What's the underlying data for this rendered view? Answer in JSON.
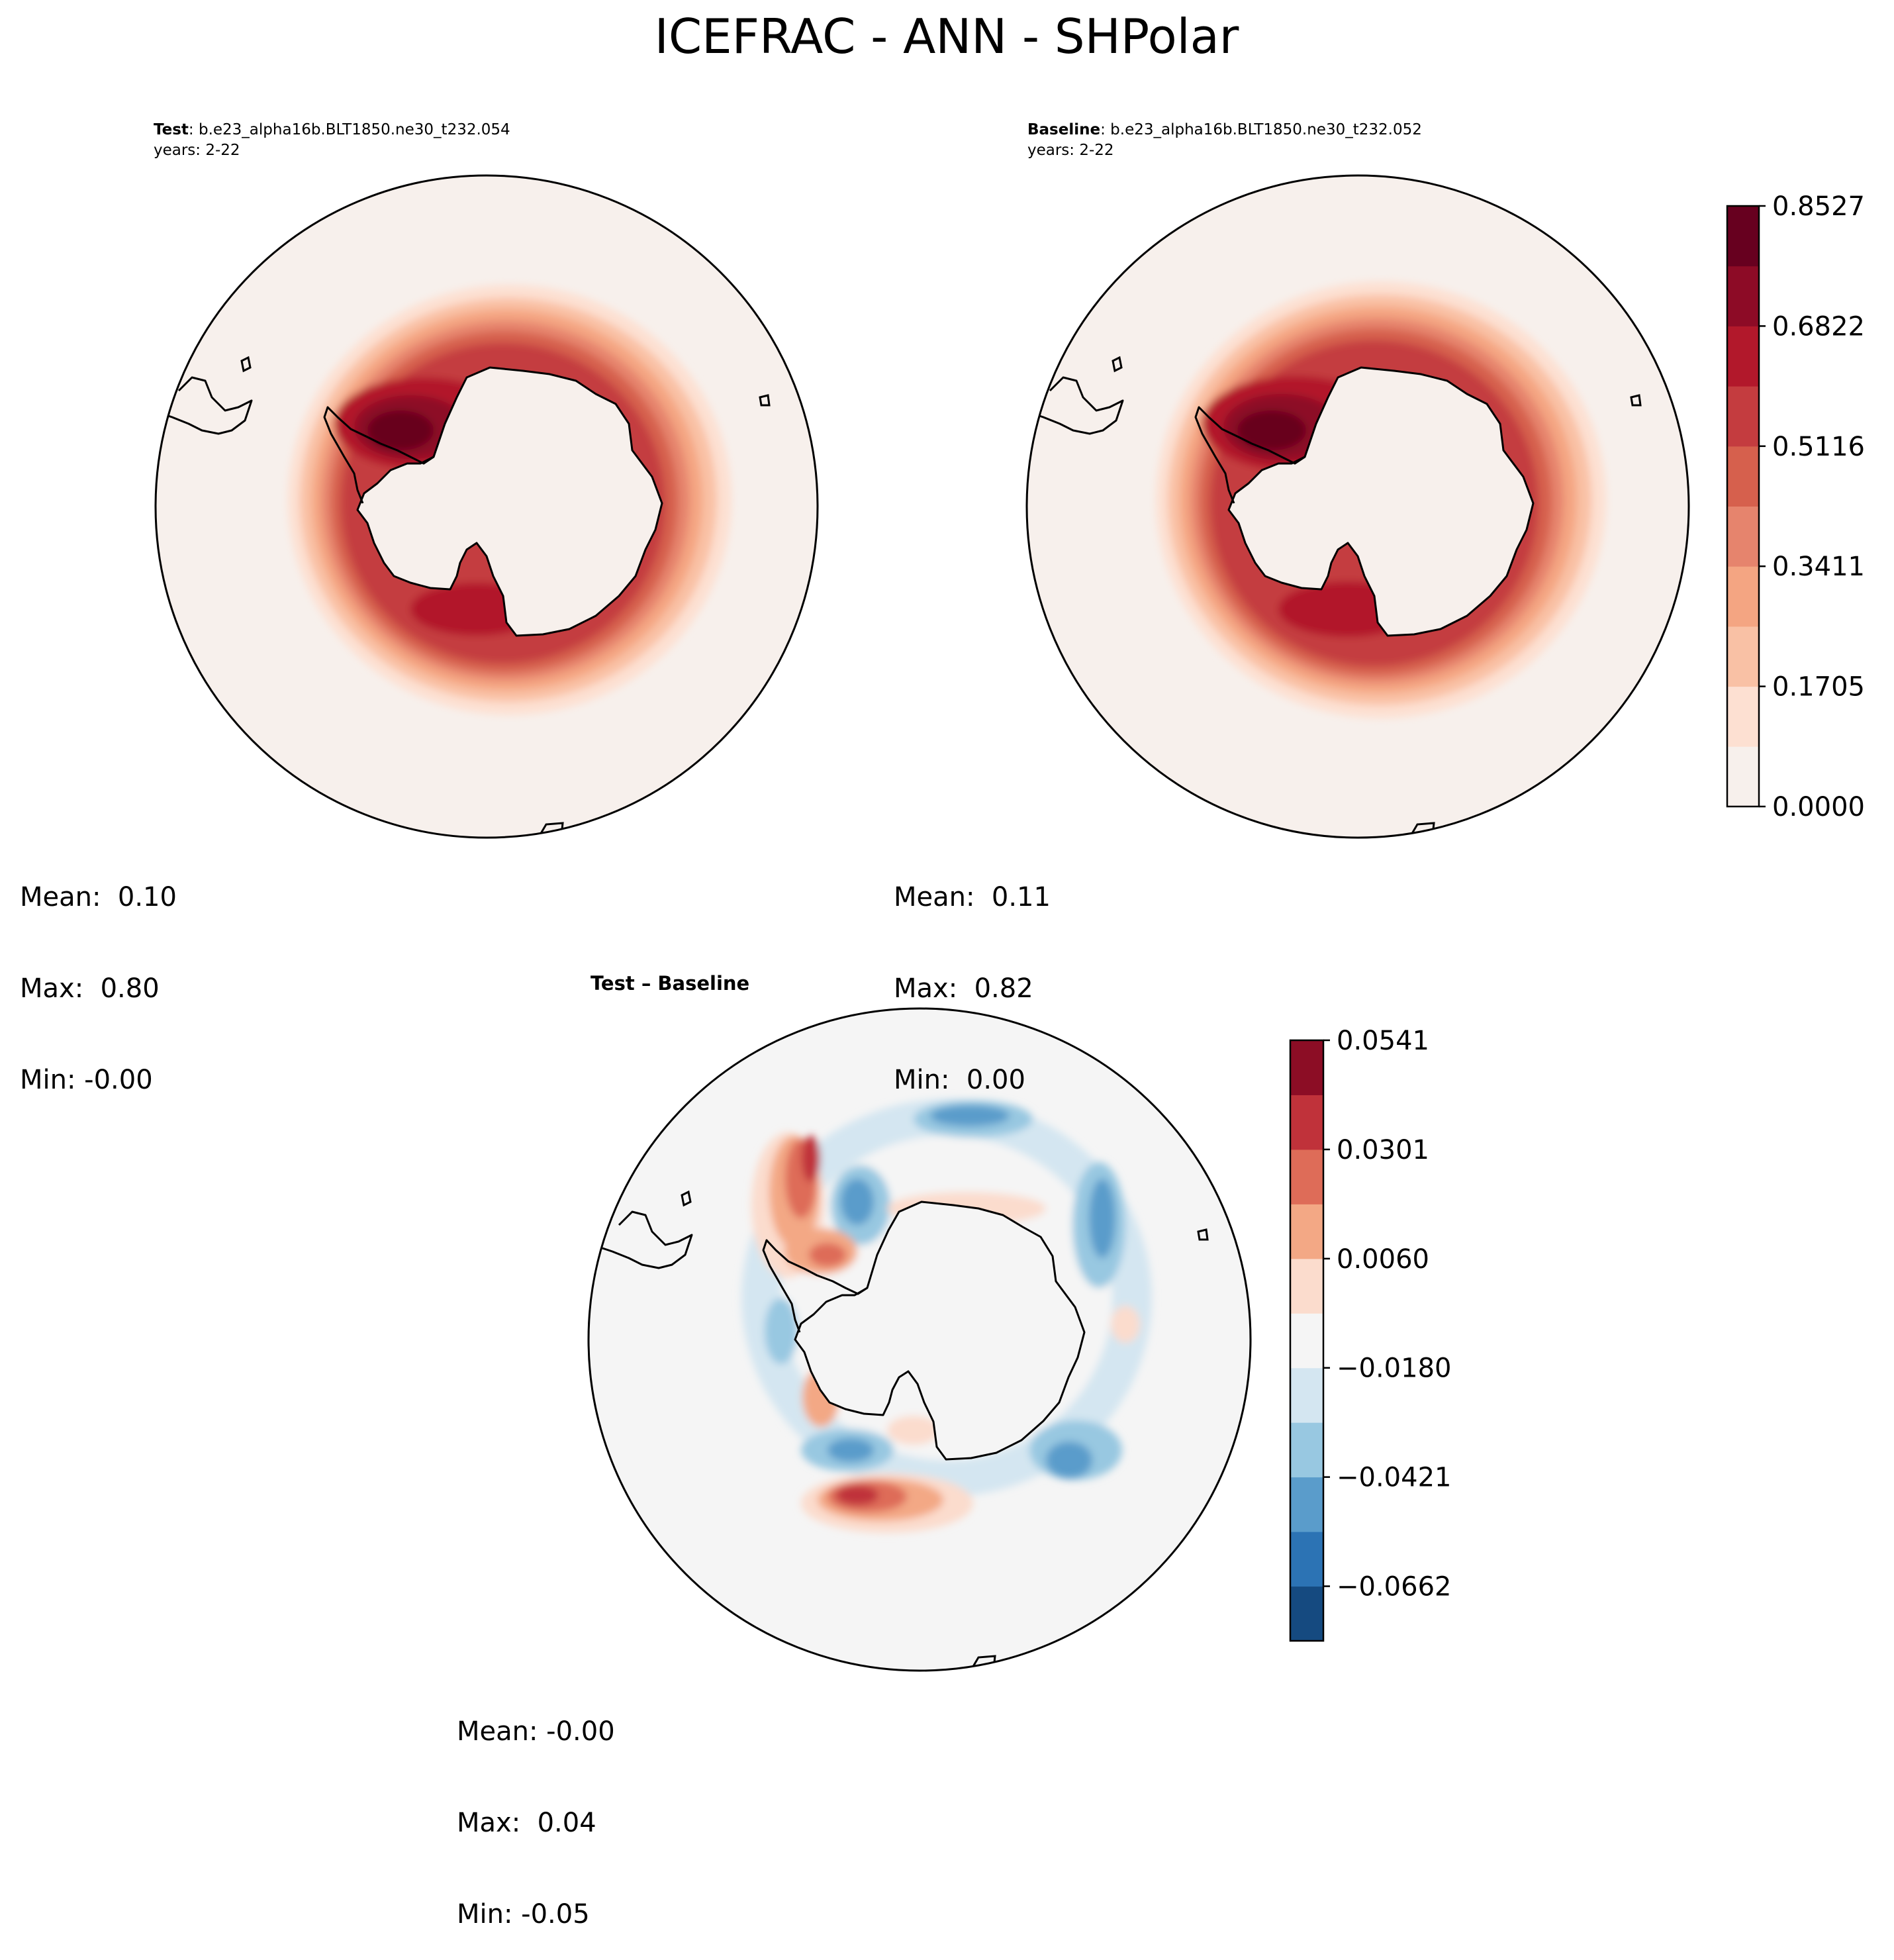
{
  "title": "ICEFRAC - ANN - SHPolar",
  "panels": [
    {
      "id": "test",
      "label": "Test",
      "case": ": b.e23_alpha16b.BLT1850.ne30_t232.054",
      "years": "years: 2-22",
      "stats": {
        "mean": "Mean:  0.10",
        "max": "Max:  0.80",
        "min": "Min: -0.00"
      }
    },
    {
      "id": "baseline",
      "label": "Baseline",
      "case": ": b.e23_alpha16b.BLT1850.ne30_t232.052",
      "years": "years: 2-22",
      "stats": {
        "mean": "Mean:  0.11",
        "max": "Max:  0.82",
        "min": "Min:  0.00"
      }
    },
    {
      "id": "diff",
      "label": "Test – Baseline",
      "stats": {
        "mean": "Mean: -0.00",
        "max": "Max:  0.04",
        "min": "Min: -0.05"
      }
    }
  ],
  "colorbars": {
    "main": {
      "ticks": [
        "0.0000",
        "0.1705",
        "0.3411",
        "0.5116",
        "0.6822",
        "0.8527"
      ],
      "colors": [
        "#f7f0ec",
        "#fde0d2",
        "#f9c1a5",
        "#f4a582",
        "#e6846d",
        "#d6604d",
        "#c43c3f",
        "#b2182b",
        "#8d0b26",
        "#67001f"
      ]
    },
    "diff": {
      "ticks": [
        "−0.0662",
        "−0.0421",
        "−0.0180",
        "0.0060",
        "0.0301",
        "0.0541"
      ],
      "colors": [
        "#154a80",
        "#2c73b4",
        "#5a9ccb",
        "#98c8e1",
        "#d4e6f1",
        "#f5f5f5",
        "#fbdccd",
        "#f3a885",
        "#de6c58",
        "#c0323a",
        "#8c0d25"
      ]
    }
  }
}
